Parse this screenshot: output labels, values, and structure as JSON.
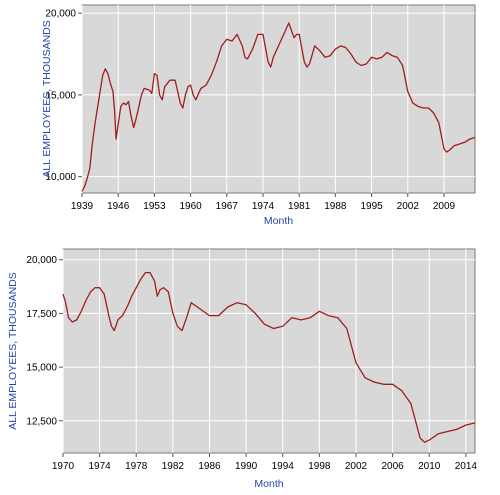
{
  "chart_data": [
    {
      "type": "line",
      "title": "",
      "xlabel": "Month",
      "ylabel": "ALL EMPLOYEES, THOUSANDS",
      "xlim": [
        1939,
        2015
      ],
      "ylim": [
        9000,
        20500
      ],
      "xticks": [
        1939,
        1946,
        1953,
        1960,
        1967,
        1974,
        1981,
        1988,
        1995,
        2002,
        2009
      ],
      "yticks": [
        10000,
        15000,
        20000
      ],
      "ytick_labels": [
        "10,000",
        "15,000",
        "20,000"
      ],
      "grid": true,
      "legend": "none",
      "background": "#d8d8d8",
      "line_color": "#a01e1e",
      "series": [
        {
          "name": "",
          "x": [
            1939,
            1939.5,
            1940,
            1940.5,
            1941,
            1941.5,
            1942,
            1942.5,
            1943,
            1943.5,
            1944,
            1944.5,
            1945,
            1945.3,
            1945.6,
            1946,
            1946.5,
            1947,
            1947.5,
            1948,
            1948.5,
            1949,
            1949.5,
            1950,
            1950.5,
            1951,
            1952,
            1952.5,
            1953,
            1953.5,
            1954,
            1954.5,
            1955,
            1956,
            1957,
            1957.5,
            1958,
            1958.5,
            1959,
            1959.5,
            1960,
            1960.5,
            1961,
            1962,
            1963,
            1964,
            1965,
            1966,
            1967,
            1968,
            1969,
            1970,
            1970.5,
            1971,
            1972,
            1973,
            1974,
            1975,
            1975.5,
            1976,
            1977,
            1978,
            1979,
            1980,
            1980.5,
            1981,
            1982,
            1982.5,
            1983,
            1984,
            1985,
            1986,
            1987,
            1988,
            1989,
            1990,
            1991,
            1992,
            1993,
            1994,
            1995,
            1996,
            1997,
            1998,
            1999,
            2000,
            2001,
            2002,
            2003,
            2004,
            2005,
            2006,
            2007,
            2008,
            2009,
            2009.5,
            2010,
            2011,
            2012,
            2013,
            2014,
            2015
          ],
          "values": [
            9100,
            9400,
            9900,
            10500,
            12000,
            13200,
            14200,
            15200,
            16200,
            16600,
            16300,
            15700,
            15200,
            14000,
            12300,
            13200,
            14300,
            14500,
            14400,
            14600,
            13700,
            13000,
            13600,
            14300,
            15000,
            15400,
            15300,
            15100,
            16300,
            16200,
            15000,
            14700,
            15500,
            15900,
            15900,
            15200,
            14500,
            14200,
            15000,
            15500,
            15600,
            15000,
            14700,
            15400,
            15600,
            16200,
            17000,
            18000,
            18400,
            18300,
            18700,
            18000,
            17300,
            17200,
            17800,
            18700,
            18700,
            17000,
            16700,
            17300,
            18000,
            18700,
            19400,
            18500,
            18700,
            18700,
            17000,
            16700,
            16900,
            18000,
            17700,
            17300,
            17400,
            17800,
            18000,
            17900,
            17500,
            17000,
            16800,
            16900,
            17300,
            17200,
            17300,
            17600,
            17400,
            17300,
            16800,
            15200,
            14500,
            14300,
            14200,
            14200,
            13900,
            13300,
            11700,
            11500,
            11600,
            11900,
            12000,
            12100,
            12300,
            12400
          ]
        }
      ]
    },
    {
      "type": "line",
      "title": "",
      "xlabel": "Month",
      "ylabel": "ALL EMPLOYEES, THOUSANDS",
      "xlim": [
        1970,
        2015
      ],
      "ylim": [
        11000,
        20500
      ],
      "xticks": [
        1970,
        1974,
        1978,
        1982,
        1986,
        1990,
        1994,
        1998,
        2002,
        2006,
        2010,
        2014
      ],
      "yticks": [
        12500,
        15000,
        17500,
        20000
      ],
      "ytick_labels": [
        "12,500",
        "15,000",
        "17,500",
        "20,000"
      ],
      "grid": true,
      "legend": "none",
      "background": "#d8d8d8",
      "line_color": "#a01e1e",
      "series": [
        {
          "name": "",
          "x": [
            1970,
            1970.3,
            1970.6,
            1971,
            1971.5,
            1972,
            1972.5,
            1973,
            1973.5,
            1974,
            1974.5,
            1975,
            1975.3,
            1975.6,
            1976,
            1976.5,
            1977,
            1977.5,
            1978,
            1978.5,
            1979,
            1979.5,
            1980,
            1980.3,
            1980.6,
            1981,
            1981.5,
            1982,
            1982.5,
            1983,
            1983.5,
            1984,
            1985,
            1986,
            1987,
            1988,
            1989,
            1990,
            1991,
            1992,
            1993,
            1994,
            1995,
            1996,
            1997,
            1998,
            1999,
            2000,
            2001,
            2002,
            2003,
            2004,
            2005,
            2006,
            2007,
            2008,
            2009,
            2009.5,
            2010,
            2011,
            2012,
            2013,
            2014,
            2015
          ],
          "values": [
            18400,
            18000,
            17300,
            17100,
            17200,
            17600,
            18100,
            18500,
            18700,
            18700,
            18400,
            17400,
            16900,
            16700,
            17200,
            17400,
            17800,
            18300,
            18700,
            19100,
            19400,
            19400,
            19000,
            18300,
            18600,
            18700,
            18500,
            17500,
            16900,
            16700,
            17300,
            18000,
            17700,
            17400,
            17400,
            17800,
            18000,
            17900,
            17500,
            17000,
            16800,
            16900,
            17300,
            17200,
            17300,
            17600,
            17400,
            17300,
            16800,
            15200,
            14500,
            14300,
            14200,
            14200,
            13900,
            13300,
            11700,
            11500,
            11600,
            11900,
            12000,
            12100,
            12300,
            12400
          ]
        }
      ]
    }
  ]
}
